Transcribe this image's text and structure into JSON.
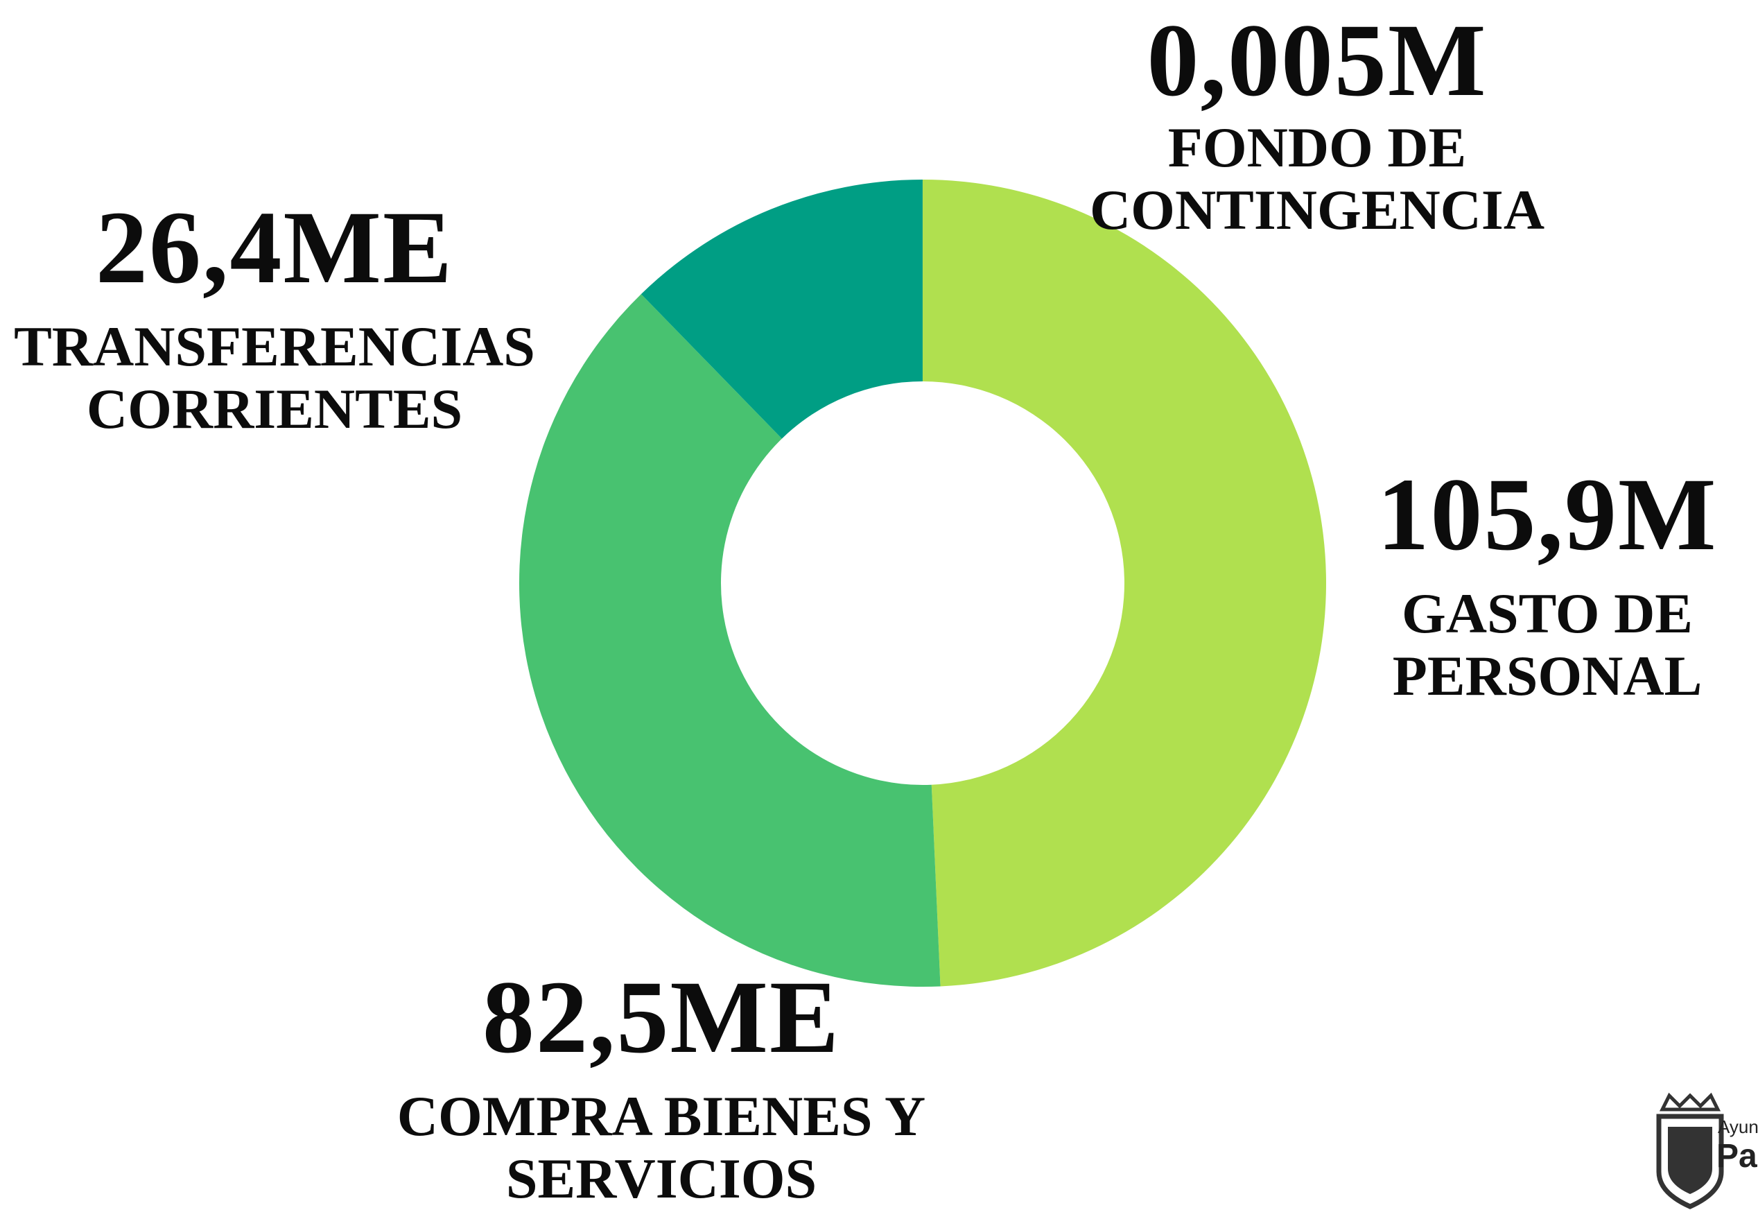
{
  "chart_data": {
    "type": "donut",
    "categories": [
      "GASTO DE\nPERSONAL",
      "COMPRA BIENES Y\nSERVICIOS",
      "TRANSFERENCIAS\nCORRIENTES",
      "FONDO DE CONTINGENCIA"
    ],
    "values": [
      105.9,
      82.5,
      26.4,
      0.005
    ],
    "value_labels": [
      "105,9M",
      "82,5ME",
      "26,4ME",
      "0,005M"
    ],
    "colors": [
      "#b0e04f",
      "#48c270",
      "#009e84",
      "#007385"
    ]
  },
  "logo": {
    "line1": "Ayunt",
    "line2": "Pam"
  }
}
